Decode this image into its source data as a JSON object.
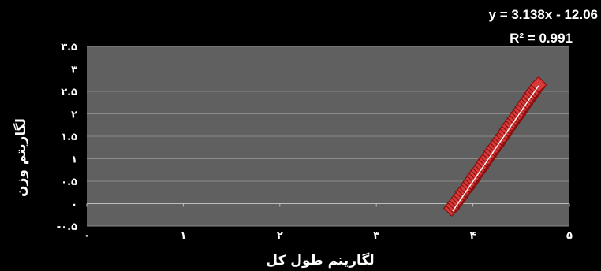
{
  "chart_data": {
    "type": "scatter",
    "xlabel": "لگاریتم طول کل",
    "ylabel": "لگاریتم وزن",
    "xlim": [
      0,
      5
    ],
    "ylim": [
      -0.5,
      3.5
    ],
    "x_ticks": [
      0,
      1,
      2,
      3,
      4,
      5
    ],
    "x_tick_labels": [
      "۰",
      "۱",
      "۲",
      "۳",
      "۴",
      "۵"
    ],
    "y_ticks": [
      -0.5,
      0,
      0.5,
      1,
      1.5,
      2,
      2.5,
      3,
      3.5
    ],
    "y_tick_labels": [
      "-۰.۵",
      "۰",
      "۰.۵",
      "۱",
      "۱.۵",
      "۲",
      "۲.۵",
      "۳",
      "۳.۵"
    ],
    "grid": "horizontal",
    "marker": "red-diamond",
    "series": [
      {
        "x": [
          3.78,
          3.8,
          3.82,
          3.84,
          3.86,
          3.88,
          3.9,
          3.92,
          3.94,
          3.96,
          3.98,
          4.0,
          4.02,
          4.04,
          4.06,
          4.08,
          4.1,
          4.12,
          4.14,
          4.16,
          4.18,
          4.2,
          4.22,
          4.24,
          4.26,
          4.28,
          4.3,
          4.32,
          4.34,
          4.36,
          4.38,
          4.4,
          4.42,
          4.44,
          4.46,
          4.48,
          4.5,
          4.52,
          4.54,
          4.56,
          4.58,
          4.6,
          4.62,
          4.64,
          4.66,
          4.68
        ],
        "y": [
          -0.1,
          -0.04,
          0.02,
          0.07,
          0.13,
          0.19,
          0.26,
          0.31,
          0.36,
          0.43,
          0.49,
          0.55,
          0.62,
          0.68,
          0.74,
          0.79,
          0.86,
          0.93,
          0.99,
          1.04,
          1.11,
          1.17,
          1.24,
          1.29,
          1.35,
          1.42,
          1.47,
          1.53,
          1.6,
          1.67,
          1.73,
          1.79,
          1.85,
          1.91,
          1.97,
          2.03,
          2.09,
          2.16,
          2.22,
          2.28,
          2.34,
          2.4,
          2.47,
          2.53,
          2.58,
          2.65
        ]
      }
    ],
    "trendline": {
      "slope": 3.138,
      "intercept": -12.06,
      "x_range": [
        3.79,
        4.68
      ],
      "equation": "y = 3.138x - 12.06",
      "r_squared": "R² = 0.991"
    }
  },
  "colors": {
    "background": "#000000",
    "plot_area": "#606060",
    "gridline": "#8c8c8c",
    "marker_fill": "#d83a3a",
    "marker_edge": "#8a1010",
    "trendline": "#ffffff",
    "text": "#ffffff"
  }
}
